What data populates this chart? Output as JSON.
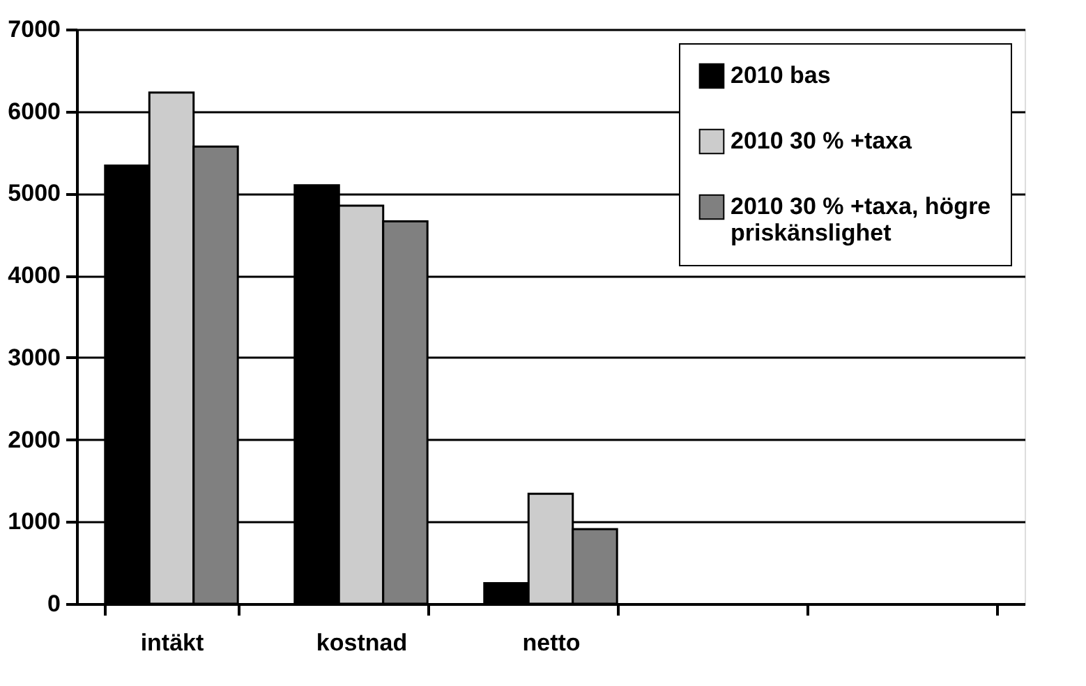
{
  "chart_data": {
    "type": "bar",
    "categories": [
      "intäkt",
      "kostnad",
      "netto",
      null,
      null
    ],
    "series": [
      {
        "name": "2010 bas",
        "color": "#000000",
        "values": [
          5340,
          5100,
          250,
          null,
          null
        ]
      },
      {
        "name": "2010 30 % +taxa",
        "color": "#cccccc",
        "values": [
          6230,
          4850,
          1340,
          null,
          null
        ]
      },
      {
        "name": "2010 30 % +taxa, högre priskänslighet",
        "color": "#808080",
        "values": [
          5570,
          4660,
          910,
          null,
          null
        ]
      }
    ],
    "ylim": [
      0,
      7000
    ],
    "yticks": [
      0,
      1000,
      2000,
      3000,
      4000,
      5000,
      6000,
      7000
    ],
    "grid": "y",
    "legend": "top right"
  }
}
